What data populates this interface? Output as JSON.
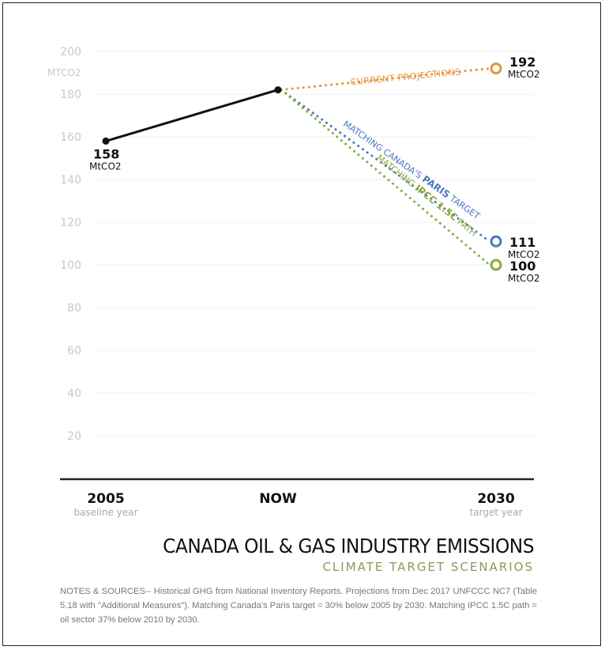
{
  "chart_data": {
    "type": "line",
    "title": "CANADA OIL & GAS INDUSTRY EMISSIONS",
    "subtitle": "CLIMATE TARGET SCENARIOS",
    "ylabel": "MTCO2",
    "ylim": [
      0,
      200
    ],
    "yticks": [
      20,
      40,
      60,
      80,
      100,
      120,
      140,
      160,
      180,
      200
    ],
    "grid": true,
    "categories": [
      {
        "label": "2005",
        "sublabel": "baseline year"
      },
      {
        "label": "NOW",
        "sublabel": ""
      },
      {
        "label": "2030",
        "sublabel": "target year"
      }
    ],
    "historical": {
      "color": "#111111",
      "values": [
        158,
        182
      ],
      "label_value": "158",
      "label_unit": "MtCO2"
    },
    "series": [
      {
        "name": "CURRENT PROJECTIONS",
        "color": "#e8913a",
        "from": 182,
        "to": 192,
        "label_value": "192",
        "label_unit": "MtCO2"
      },
      {
        "name": "MATCHING CANADA'S PARIS TARGET",
        "name_parts": [
          "MATCHING CANADA'S ",
          "PARIS",
          " TARGET"
        ],
        "color": "#4a78c0",
        "from": 182,
        "to": 111,
        "label_value": "111",
        "label_unit": "MtCO2"
      },
      {
        "name": "MATCHING IPCC 1.5C PATH",
        "name_parts": [
          "MATCHING ",
          "IPCC 1.5C",
          " PATH"
        ],
        "color": "#8aab3c",
        "from": 182,
        "to": 100,
        "label_value": "100",
        "label_unit": "MtCO2"
      }
    ]
  },
  "notes": "NOTES & SOURCES-- Historical GHG from National Inventory Reports. Projections from Dec 2017 UNFCCC NC7 (Table 5.18 with \"Additional Measures\"). Matching Canada's Paris target = 30% below 2005 by 2030. Matching IPCC 1.5C path = oil sector 37% below 2010 by 2030."
}
